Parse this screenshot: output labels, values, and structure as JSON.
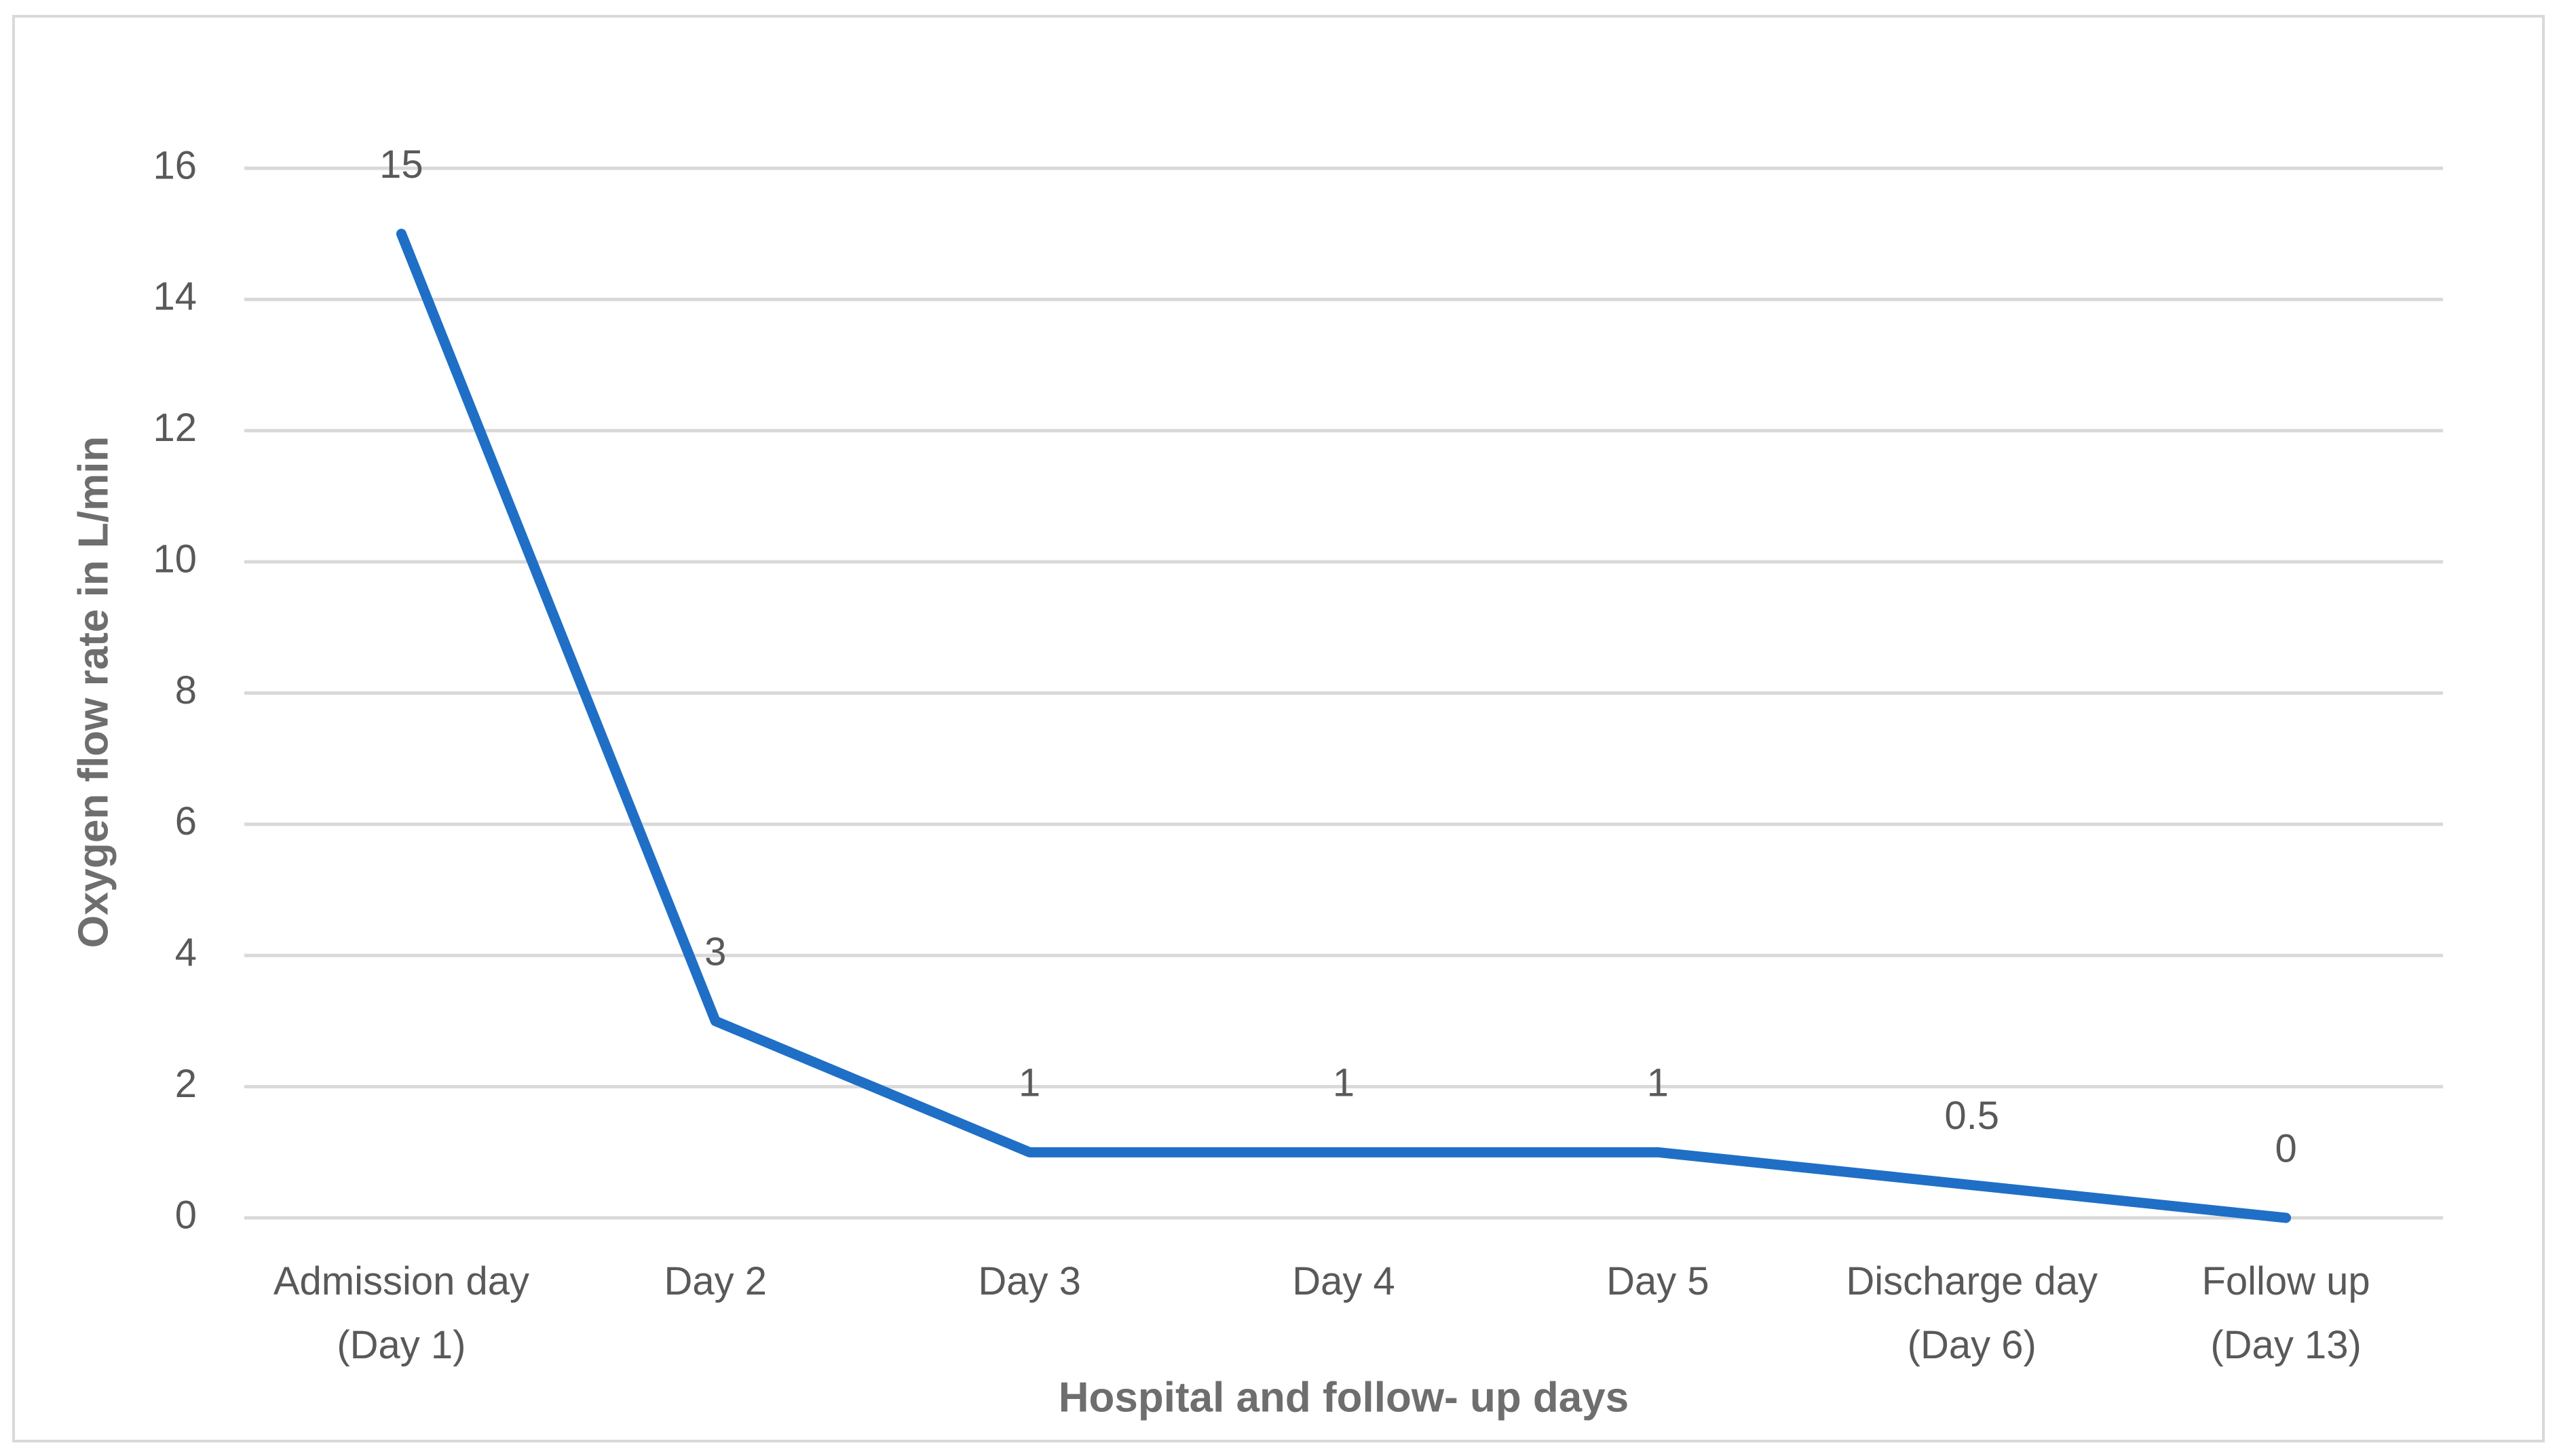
{
  "chart_data": {
    "type": "line",
    "x_label": "Hospital and follow- up days",
    "y_label": "Oxygen flow rate in L/min",
    "categories": [
      "Admission day\n(Day 1)",
      "Day 2",
      "Day 3",
      "Day 4",
      "Day 5",
      "Discharge day\n(Day 6)",
      "Follow up\n(Day 13)"
    ],
    "values": [
      15,
      3,
      1,
      1,
      1,
      0.5,
      0
    ],
    "color": "#1f6fc6",
    "ylim": [
      0,
      16
    ],
    "yticks": [
      0,
      2,
      4,
      6,
      8,
      10,
      12,
      14,
      16
    ],
    "grid": true
  }
}
